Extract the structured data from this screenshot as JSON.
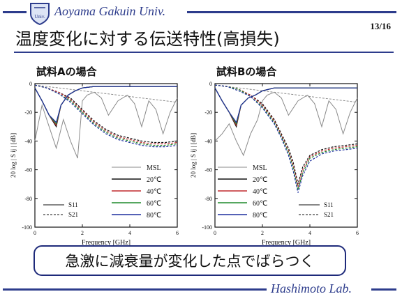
{
  "header": {
    "university": "Aoyama Gakuin Univ.",
    "page_number": "13/16",
    "logo_text": "Univ."
  },
  "slide": {
    "title": "温度変化に対する伝送特性(高損失)",
    "conclusion": "急激に減衰量が変化した点でばらつく",
    "lab_name": "Hashimoto Lab."
  },
  "colors": {
    "brand": "#2d3c8c",
    "msl": "#8a8a8a",
    "t20": "#111111",
    "t40": "#c0282d",
    "t60": "#1f8a2b",
    "t80": "#1d2f9e"
  },
  "chart_data": [
    {
      "type": "line",
      "title": "試料Aの場合",
      "xlabel": "Frequency [GHz]",
      "ylabel": "20 log | S ij | [dB]",
      "xlim": [
        0,
        6
      ],
      "ylim": [
        -100,
        0
      ],
      "xticks": [
        "0",
        "2",
        "4",
        "6"
      ],
      "yticks": [
        "0",
        "-20",
        "-40",
        "-60",
        "-80",
        "-100"
      ],
      "legend": {
        "series_labels": [
          "MSL",
          "20℃",
          "40℃",
          "60℃",
          "80℃"
        ],
        "style_labels": [
          "S11",
          "S21"
        ],
        "position": "bottom"
      },
      "series": [
        {
          "name": "MSL",
          "param": "S11",
          "color_key": "msl",
          "x": [
            0,
            0.3,
            0.6,
            0.9,
            1.2,
            1.5,
            1.8,
            2.0,
            2.2,
            2.5,
            2.8,
            3.1,
            3.5,
            3.9,
            4.2,
            4.5,
            4.8,
            5.1,
            5.4,
            5.7,
            6.0
          ],
          "y": [
            -40,
            -15,
            -30,
            -45,
            -25,
            -40,
            -52,
            -12,
            -8,
            -6,
            -10,
            -22,
            -12,
            -8,
            -14,
            -30,
            -12,
            -18,
            -35,
            -20,
            -10
          ]
        },
        {
          "name": "MSL",
          "param": "S21",
          "color_key": "msl",
          "x": [
            0,
            0.5,
            1.0,
            1.5,
            2.0,
            2.5,
            3.0,
            3.5,
            4.0,
            4.5,
            5.0,
            5.5,
            6.0
          ],
          "y": [
            -1,
            -2,
            -3,
            -4,
            -5,
            -6,
            -7,
            -8,
            -9,
            -10,
            -11,
            -12,
            -13
          ]
        },
        {
          "name": "20℃",
          "param": "S11",
          "color_key": "t20",
          "x": [
            0,
            0.3,
            0.6,
            0.9,
            1.1,
            1.4,
            1.7,
            2.0,
            2.5,
            3.0,
            3.5,
            4.0,
            4.5,
            5.0,
            5.5,
            6.0
          ],
          "y": [
            -3,
            -12,
            -22,
            -30,
            -15,
            -8,
            -5,
            -3,
            -2,
            -2,
            -2,
            -2,
            -2,
            -2,
            -2,
            -2
          ]
        },
        {
          "name": "20℃",
          "param": "S21",
          "color_key": "t20",
          "x": [
            0,
            0.5,
            1.0,
            1.5,
            2.0,
            2.5,
            3.0,
            3.5,
            4.0,
            4.5,
            5.0,
            5.5,
            6.0
          ],
          "y": [
            -1,
            -3,
            -6,
            -10,
            -18,
            -26,
            -32,
            -36,
            -38,
            -40,
            -41,
            -41,
            -40
          ]
        },
        {
          "name": "40℃",
          "param": "S11",
          "color_key": "t40",
          "x": [
            0,
            0.3,
            0.6,
            0.9,
            1.1,
            1.4,
            1.7,
            2.0,
            2.5,
            3.0,
            3.5,
            4.0,
            4.5,
            5.0,
            5.5,
            6.0
          ],
          "y": [
            -3,
            -12,
            -22,
            -29,
            -15,
            -8,
            -5,
            -3,
            -2,
            -2,
            -2,
            -2,
            -2,
            -2,
            -2,
            -2
          ]
        },
        {
          "name": "40℃",
          "param": "S21",
          "color_key": "t40",
          "x": [
            0,
            0.5,
            1.0,
            1.5,
            2.0,
            2.5,
            3.0,
            3.5,
            4.0,
            4.5,
            5.0,
            5.5,
            6.0
          ],
          "y": [
            -1,
            -3,
            -6,
            -11,
            -19,
            -27,
            -33,
            -37,
            -39,
            -41,
            -42,
            -42,
            -41
          ]
        },
        {
          "name": "60℃",
          "param": "S11",
          "color_key": "t60",
          "x": [
            0,
            0.3,
            0.6,
            0.9,
            1.1,
            1.4,
            1.7,
            2.0,
            2.5,
            3.0,
            3.5,
            4.0,
            4.5,
            5.0,
            5.5,
            6.0
          ],
          "y": [
            -3,
            -12,
            -22,
            -28,
            -15,
            -8,
            -5,
            -3,
            -2,
            -2,
            -2,
            -2,
            -2,
            -2,
            -2,
            -2
          ]
        },
        {
          "name": "60℃",
          "param": "S21",
          "color_key": "t60",
          "x": [
            0,
            0.5,
            1.0,
            1.5,
            2.0,
            2.5,
            3.0,
            3.5,
            4.0,
            4.5,
            5.0,
            5.5,
            6.0
          ],
          "y": [
            -1,
            -3,
            -7,
            -12,
            -20,
            -28,
            -34,
            -38,
            -40,
            -42,
            -43,
            -43,
            -42
          ]
        },
        {
          "name": "80℃",
          "param": "S11",
          "color_key": "t80",
          "x": [
            0,
            0.3,
            0.6,
            0.9,
            1.1,
            1.4,
            1.7,
            2.0,
            2.5,
            3.0,
            3.5,
            4.0,
            4.5,
            5.0,
            5.5,
            6.0
          ],
          "y": [
            -3,
            -12,
            -22,
            -27,
            -15,
            -8,
            -5,
            -3,
            -2,
            -2,
            -2,
            -2,
            -2,
            -2,
            -2,
            -2
          ]
        },
        {
          "name": "80℃",
          "param": "S21",
          "color_key": "t80",
          "x": [
            0,
            0.5,
            1.0,
            1.5,
            2.0,
            2.5,
            3.0,
            3.5,
            4.0,
            4.5,
            5.0,
            5.5,
            6.0
          ],
          "y": [
            -1,
            -3,
            -7,
            -13,
            -21,
            -29,
            -35,
            -39,
            -41,
            -43,
            -44,
            -44,
            -43
          ]
        }
      ]
    },
    {
      "type": "line",
      "title": "試料Bの場合",
      "xlabel": "Frequency [GHz]",
      "ylabel": "20 log | S ij | [dB]",
      "xlim": [
        0,
        6
      ],
      "ylim": [
        -100,
        0
      ],
      "xticks": [
        "0",
        "2",
        "4",
        "6"
      ],
      "yticks": [
        "0",
        "-20",
        "-40",
        "-60",
        "-80",
        "-100"
      ],
      "legend": {
        "series_labels": [
          "MSL",
          "20℃",
          "40℃",
          "60℃",
          "80℃"
        ],
        "style_labels": [
          "S11",
          "S21"
        ],
        "position": "bottom"
      },
      "series": [
        {
          "name": "MSL",
          "param": "S11",
          "color_key": "msl",
          "x": [
            0,
            0.3,
            0.6,
            0.9,
            1.2,
            1.5,
            1.8,
            2.0,
            2.2,
            2.5,
            2.8,
            3.1,
            3.5,
            3.9,
            4.2,
            4.5,
            4.8,
            5.1,
            5.4,
            5.7,
            6.0
          ],
          "y": [
            -40,
            -35,
            -28,
            -40,
            -50,
            -35,
            -25,
            -12,
            -8,
            -6,
            -10,
            -22,
            -12,
            -8,
            -14,
            -30,
            -12,
            -18,
            -35,
            -20,
            -10
          ]
        },
        {
          "name": "MSL",
          "param": "S21",
          "color_key": "msl",
          "x": [
            0,
            0.5,
            1.0,
            1.5,
            2.0,
            2.5,
            3.0,
            3.5,
            4.0,
            4.5,
            5.0,
            5.5,
            6.0
          ],
          "y": [
            -1,
            -2,
            -3,
            -4,
            -5,
            -6,
            -7,
            -8,
            -9,
            -10,
            -11,
            -12,
            -13
          ]
        },
        {
          "name": "20℃",
          "param": "S11",
          "color_key": "t20",
          "x": [
            0,
            0.3,
            0.6,
            0.9,
            1.1,
            1.4,
            1.7,
            2.0,
            2.5,
            3.0,
            3.5,
            4.0,
            4.5,
            5.0,
            5.5,
            6.0
          ],
          "y": [
            -3,
            -12,
            -20,
            -30,
            -15,
            -10,
            -8,
            -5,
            -3,
            -3,
            -3,
            -3,
            -3,
            -3,
            -3,
            -3
          ]
        },
        {
          "name": "20℃",
          "param": "S21",
          "color_key": "t20",
          "x": [
            0,
            0.5,
            1.0,
            1.5,
            2.0,
            2.5,
            2.8,
            3.1,
            3.3,
            3.5,
            3.7,
            4.0,
            4.5,
            5.0,
            5.5,
            6.0
          ],
          "y": [
            -1,
            -2,
            -4,
            -8,
            -14,
            -25,
            -35,
            -45,
            -55,
            -70,
            -58,
            -50,
            -46,
            -44,
            -43,
            -42
          ]
        },
        {
          "name": "40℃",
          "param": "S11",
          "color_key": "t40",
          "x": [
            0,
            0.3,
            0.6,
            0.9,
            1.1,
            1.4,
            1.7,
            2.0,
            2.5,
            3.0,
            3.5,
            4.0,
            4.5,
            5.0,
            5.5,
            6.0
          ],
          "y": [
            -3,
            -12,
            -20,
            -29,
            -15,
            -10,
            -8,
            -5,
            -3,
            -3,
            -3,
            -3,
            -3,
            -3,
            -3,
            -3
          ]
        },
        {
          "name": "40℃",
          "param": "S21",
          "color_key": "t40",
          "x": [
            0,
            0.5,
            1.0,
            1.5,
            2.0,
            2.5,
            2.8,
            3.1,
            3.3,
            3.5,
            3.7,
            4.0,
            4.5,
            5.0,
            5.5,
            6.0
          ],
          "y": [
            -1,
            -2,
            -4,
            -8,
            -15,
            -26,
            -36,
            -47,
            -57,
            -72,
            -60,
            -51,
            -47,
            -45,
            -44,
            -43
          ]
        },
        {
          "name": "60℃",
          "param": "S11",
          "color_key": "t60",
          "x": [
            0,
            0.3,
            0.6,
            0.9,
            1.1,
            1.4,
            1.7,
            2.0,
            2.5,
            3.0,
            3.5,
            4.0,
            4.5,
            5.0,
            5.5,
            6.0
          ],
          "y": [
            -3,
            -12,
            -20,
            -28,
            -15,
            -10,
            -8,
            -5,
            -3,
            -3,
            -3,
            -3,
            -3,
            -3,
            -3,
            -3
          ]
        },
        {
          "name": "60℃",
          "param": "S21",
          "color_key": "t60",
          "x": [
            0,
            0.5,
            1.0,
            1.5,
            2.0,
            2.5,
            2.8,
            3.1,
            3.3,
            3.5,
            3.7,
            4.0,
            4.5,
            5.0,
            5.5,
            6.0
          ],
          "y": [
            -1,
            -2,
            -4,
            -9,
            -16,
            -27,
            -37,
            -48,
            -59,
            -74,
            -62,
            -52,
            -48,
            -46,
            -45,
            -44
          ]
        },
        {
          "name": "80℃",
          "param": "S11",
          "color_key": "t80",
          "x": [
            0,
            0.3,
            0.6,
            0.9,
            1.1,
            1.4,
            1.7,
            2.0,
            2.5,
            3.0,
            3.5,
            4.0,
            4.5,
            5.0,
            5.5,
            6.0
          ],
          "y": [
            -3,
            -12,
            -20,
            -27,
            -15,
            -10,
            -8,
            -5,
            -3,
            -3,
            -3,
            -3,
            -3,
            -3,
            -3,
            -3
          ]
        },
        {
          "name": "80℃",
          "param": "S21",
          "color_key": "t80",
          "x": [
            0,
            0.5,
            1.0,
            1.5,
            2.0,
            2.5,
            2.8,
            3.1,
            3.3,
            3.5,
            3.7,
            4.0,
            4.5,
            5.0,
            5.5,
            6.0
          ],
          "y": [
            -1,
            -2,
            -5,
            -9,
            -17,
            -28,
            -38,
            -50,
            -61,
            -76,
            -64,
            -54,
            -49,
            -47,
            -46,
            -45
          ]
        }
      ]
    }
  ]
}
